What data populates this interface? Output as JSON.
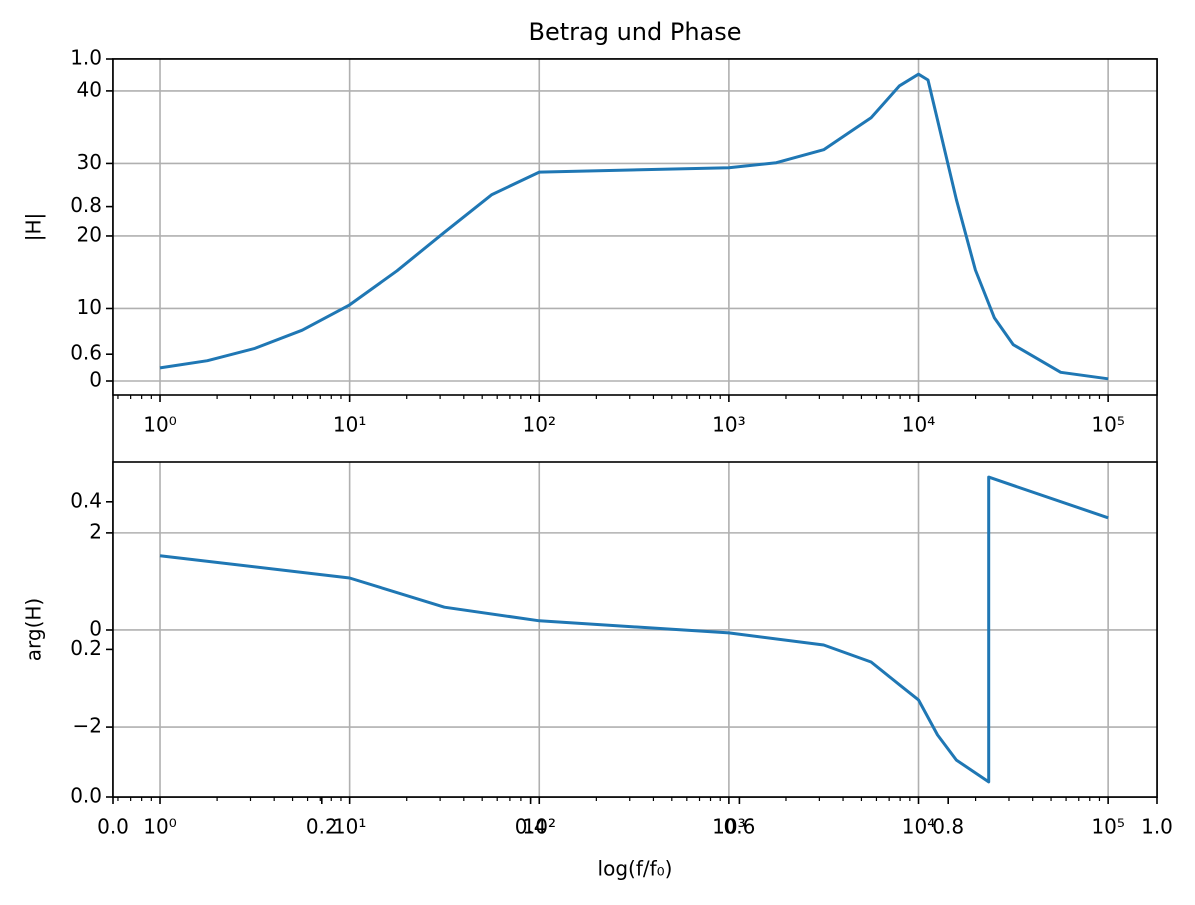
{
  "chart_data": [
    {
      "type": "frame",
      "xlim": [
        0,
        1
      ],
      "ylim": [
        0,
        1
      ],
      "xticks": [
        {
          "value": 0,
          "label": "0.0"
        },
        {
          "value": 0.2,
          "label": "0.2"
        },
        {
          "value": 0.4,
          "label": "0.4"
        },
        {
          "value": 0.6,
          "label": "0.6"
        },
        {
          "value": 0.8,
          "label": "0.8"
        },
        {
          "value": 1,
          "label": "1.0"
        }
      ],
      "yticks": [
        {
          "value": 0,
          "label": "0.0"
        },
        {
          "value": 0.2,
          "label": "0.2"
        },
        {
          "value": 0.4,
          "label": "0.4"
        },
        {
          "value": 0.6,
          "label": "0.6"
        },
        {
          "value": 0.8,
          "label": "0.8"
        },
        {
          "value": 1,
          "label": "1.0"
        }
      ]
    },
    {
      "type": "line",
      "title": "Betrag und Phase",
      "ylabel": "|H|",
      "xscale": "log",
      "grid": true,
      "color": "#1f77b4",
      "x": [
        1,
        1.778,
        3.162,
        5.623,
        10,
        17.78,
        31.62,
        56.23,
        100,
        1000,
        1778,
        3162,
        5623,
        7943,
        10000,
        11220,
        12589,
        15849,
        19953,
        25119,
        31623,
        56234,
        100000
      ],
      "values": [
        1.8,
        2.8,
        4.5,
        7.0,
        10.5,
        15.2,
        20.5,
        25.7,
        28.8,
        29.4,
        30.1,
        31.9,
        36.3,
        40.7,
        42.3,
        41.5,
        36,
        25,
        15.3,
        8.7,
        5,
        1.2,
        0.3
      ],
      "xlim": [
        0.565,
        181000
      ],
      "ylim": [
        -1.93,
        44.4
      ],
      "xticks": [
        {
          "value": 1,
          "label": "10⁰"
        },
        {
          "value": 10,
          "label": "10¹"
        },
        {
          "value": 100,
          "label": "10²"
        },
        {
          "value": 1000,
          "label": "10³"
        },
        {
          "value": 10000,
          "label": "10⁴"
        },
        {
          "value": 100000,
          "label": "10⁵"
        }
      ],
      "yticks": [
        0,
        10,
        20,
        30,
        40
      ]
    },
    {
      "type": "line",
      "ylabel": "arg(H)",
      "xlabel": "log(f/f₀)",
      "xscale": "log",
      "grid": true,
      "color": "#1f77b4",
      "x": [
        1,
        10,
        31.62,
        100,
        1000,
        3162,
        5623,
        7943,
        10000,
        12589,
        15849,
        23442,
        23442,
        100000
      ],
      "values": [
        1.53,
        1.07,
        0.47,
        0.19,
        -0.06,
        -0.31,
        -0.66,
        -1.13,
        -1.44,
        -2.16,
        -2.68,
        -3.13,
        3.15,
        2.31
      ],
      "xlim": [
        0.565,
        181000
      ],
      "ylim": [
        -3.44,
        3.46
      ],
      "xticks": [
        {
          "value": 1,
          "label": "10⁰"
        },
        {
          "value": 10,
          "label": "10¹"
        },
        {
          "value": 100,
          "label": "10²"
        },
        {
          "value": 1000,
          "label": "10³"
        },
        {
          "value": 10000,
          "label": "10⁴"
        },
        {
          "value": 100000,
          "label": "10⁵"
        }
      ],
      "yticks": [
        {
          "value": -2,
          "label": "−2"
        },
        0,
        2
      ]
    }
  ]
}
